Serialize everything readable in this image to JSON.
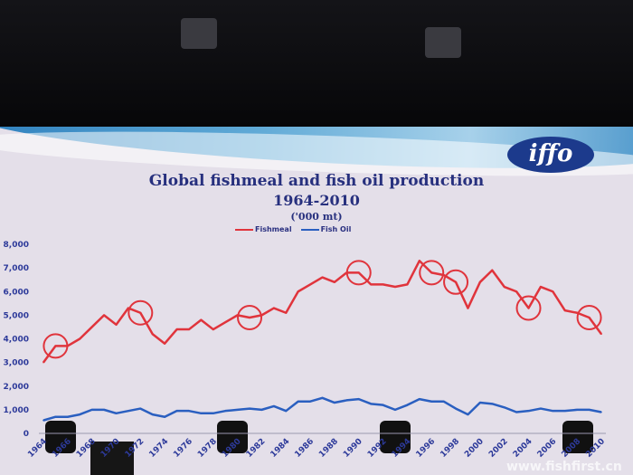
{
  "chart_data": {
    "type": "line",
    "title": "Global fishmeal and fish oil production",
    "subtitle": "1964-2010",
    "unit": "('000 mt)",
    "x": [
      1964,
      1965,
      1966,
      1967,
      1968,
      1969,
      1970,
      1971,
      1972,
      1973,
      1974,
      1975,
      1976,
      1977,
      1978,
      1979,
      1980,
      1981,
      1982,
      1983,
      1984,
      1985,
      1986,
      1987,
      1988,
      1989,
      1990,
      1991,
      1992,
      1993,
      1994,
      1995,
      1996,
      1997,
      1998,
      1999,
      2000,
      2001,
      2002,
      2003,
      2004,
      2005,
      2006,
      2007,
      2008,
      2009,
      2010
    ],
    "x_ticks": [
      "1964",
      "1966",
      "1968",
      "1970",
      "1972",
      "1974",
      "1976",
      "1978",
      "1980",
      "1982",
      "1984",
      "1986",
      "1988",
      "1990",
      "1992",
      "1994",
      "1996",
      "1998",
      "2000",
      "2002",
      "2004",
      "2006",
      "2008",
      "2010"
    ],
    "y_ticks": [
      "0",
      "1,000",
      "2,000",
      "3,000",
      "4,000",
      "5,000",
      "6,000",
      "7,000",
      "8,000"
    ],
    "ylim": [
      0,
      8000
    ],
    "legend_position": "top-center",
    "series": [
      {
        "name": "Fishmeal",
        "color": "#e0343c",
        "values": [
          3000,
          3700,
          3700,
          4000,
          4500,
          5000,
          4600,
          5300,
          5100,
          4200,
          3800,
          4400,
          4400,
          4800,
          4400,
          4700,
          5000,
          4900,
          5000,
          5300,
          5100,
          6000,
          6300,
          6600,
          6400,
          6800,
          6800,
          6300,
          6300,
          6200,
          6300,
          7300,
          6800,
          6700,
          6400,
          5300,
          6400,
          6900,
          6200,
          6000,
          5300,
          6200,
          6000,
          5200,
          5100,
          4900,
          4200
        ]
      },
      {
        "name": "Fish Oil",
        "color": "#2a5fc0",
        "values": [
          550,
          700,
          700,
          800,
          1000,
          1000,
          850,
          950,
          1050,
          800,
          700,
          950,
          950,
          850,
          850,
          950,
          1000,
          1050,
          1000,
          1150,
          950,
          1350,
          1350,
          1500,
          1300,
          1400,
          1450,
          1250,
          1200,
          1000,
          1200,
          1450,
          1350,
          1350,
          1050,
          800,
          1300,
          1250,
          1100,
          900,
          950,
          1050,
          950,
          950,
          1000,
          1000,
          900
        ]
      }
    ],
    "highlight_circles_years": [
      1965,
      1972,
      1981,
      1990,
      1996,
      1998,
      2004,
      2009
    ],
    "highlight_color": "#e0343c"
  },
  "logo_text": "iffo",
  "watermark": "www.fishfirst.cn"
}
